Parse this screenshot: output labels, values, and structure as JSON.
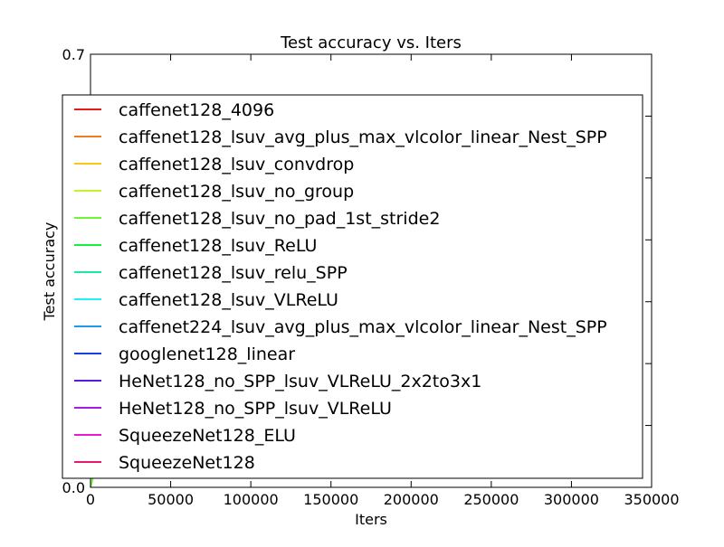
{
  "chart_data": {
    "type": "line",
    "title": "Test accuracy  vs. Iters",
    "xlabel": "Iters",
    "ylabel": "Test accuracy",
    "xlim": [
      0,
      350000
    ],
    "ylim": [
      0.0,
      0.7
    ],
    "x_ticks": [
      "0",
      "50000",
      "100000",
      "150000",
      "200000",
      "250000",
      "300000",
      "350000"
    ],
    "x_tick_values": [
      0,
      50000,
      100000,
      150000,
      200000,
      250000,
      300000,
      350000
    ],
    "y_ticks": [
      "0.0",
      "0.7"
    ],
    "y_tick_values": [
      0.0,
      0.7
    ],
    "grid": false,
    "legend_position": "center",
    "series": [
      {
        "name": "caffenet128_4096",
        "color": "#e41a1c"
      },
      {
        "name": "caffenet128_lsuv_avg_plus_max_vlcolor_linear_Nest_SPP",
        "color": "#f07c1b"
      },
      {
        "name": "caffenet128_lsuv_convdrop",
        "color": "#f7c617"
      },
      {
        "name": "caffenet128_lsuv_no_group",
        "color": "#c2f42b"
      },
      {
        "name": "caffenet128_lsuv_no_pad_1st_stride2",
        "color": "#6ef533",
        "x": [
          0,
          800,
          1800,
          3000
        ],
        "y": [
          0.0,
          0.008,
          0.02,
          0.028
        ]
      },
      {
        "name": "caffenet128_lsuv_ReLU",
        "color": "#17ee3e"
      },
      {
        "name": "caffenet128_lsuv_relu_SPP",
        "color": "#1be8a4"
      },
      {
        "name": "caffenet128_lsuv_VLReLU",
        "color": "#1ef2ef"
      },
      {
        "name": "caffenet224_lsuv_avg_plus_max_vlcolor_linear_Nest_SPP",
        "color": "#1b9be8"
      },
      {
        "name": "googlenet128_linear",
        "color": "#1a3de0"
      },
      {
        "name": "HeNet128_no_SPP_lsuv_VLReLU_2x2to3x1",
        "color": "#5a19e0"
      },
      {
        "name": "HeNet128_no_SPP_lsuv_VLReLU",
        "color": "#a61be8"
      },
      {
        "name": "SqueezeNet128_ELU",
        "color": "#e81bd2"
      },
      {
        "name": "SqueezeNet128",
        "color": "#e8186f"
      }
    ]
  }
}
